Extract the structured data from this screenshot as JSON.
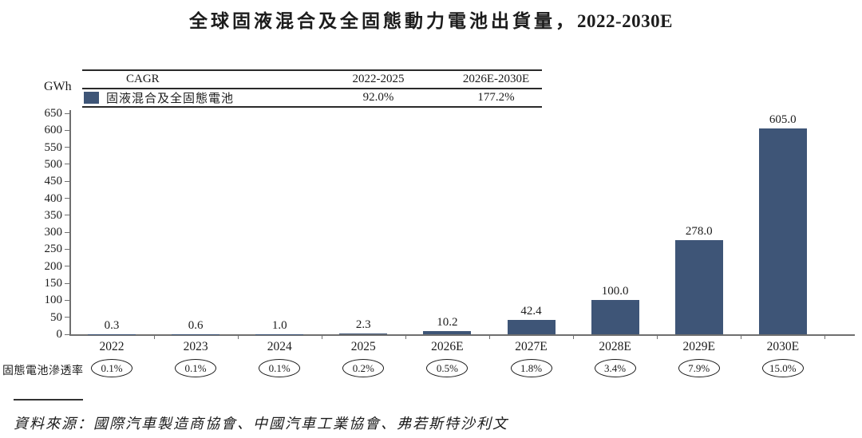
{
  "title": {
    "cjk": "全球固液混合及全固態動力電池出貨量，",
    "range": "2022-2030E"
  },
  "unit_label": "GWh",
  "cagr_table": {
    "col_cagr": "CAGR",
    "col_period1": "2022-2025",
    "col_period2": "2026E-2030E",
    "legend_label": "固液混合及全固態電池",
    "cagr_period1": "92.0%",
    "cagr_period2": "177.2%"
  },
  "penetration_label": "固態電池滲透率",
  "source_note": "資料來源：國際汽車製造商協會、中國汽車工業協會、弗若斯特沙利文",
  "colors": {
    "bar": "#3e5577",
    "axis": "#6f6f6f",
    "text": "#1c1c1c"
  },
  "chart_data": {
    "type": "bar",
    "title": "全球固液混合及全固態動力電池出貨量，2022-2030E",
    "ylabel": "GWh",
    "xlabel": "",
    "ylim": [
      0,
      650
    ],
    "ytick_step": 50,
    "grid": false,
    "legend_position": "top-left table",
    "categories": [
      "2022",
      "2023",
      "2024",
      "2025",
      "2026E",
      "2027E",
      "2028E",
      "2029E",
      "2030E"
    ],
    "series": [
      {
        "name": "固液混合及全固態電池",
        "values": [
          0.3,
          0.6,
          1.0,
          2.3,
          10.2,
          42.4,
          100.0,
          278.0,
          605.0
        ]
      }
    ],
    "bar_labels": [
      "0.3",
      "0.6",
      "1.0",
      "2.3",
      "10.2",
      "42.4",
      "100.0",
      "278.0",
      "605.0"
    ],
    "penetration_series_label": "固態電池滲透率",
    "penetration_rates": [
      "0.1%",
      "0.1%",
      "0.1%",
      "0.2%",
      "0.5%",
      "1.8%",
      "3.4%",
      "7.9%",
      "15.0%"
    ],
    "cagr": [
      {
        "period": "2022-2025",
        "value": "92.0%"
      },
      {
        "period": "2026E-2030E",
        "value": "177.2%"
      }
    ]
  }
}
